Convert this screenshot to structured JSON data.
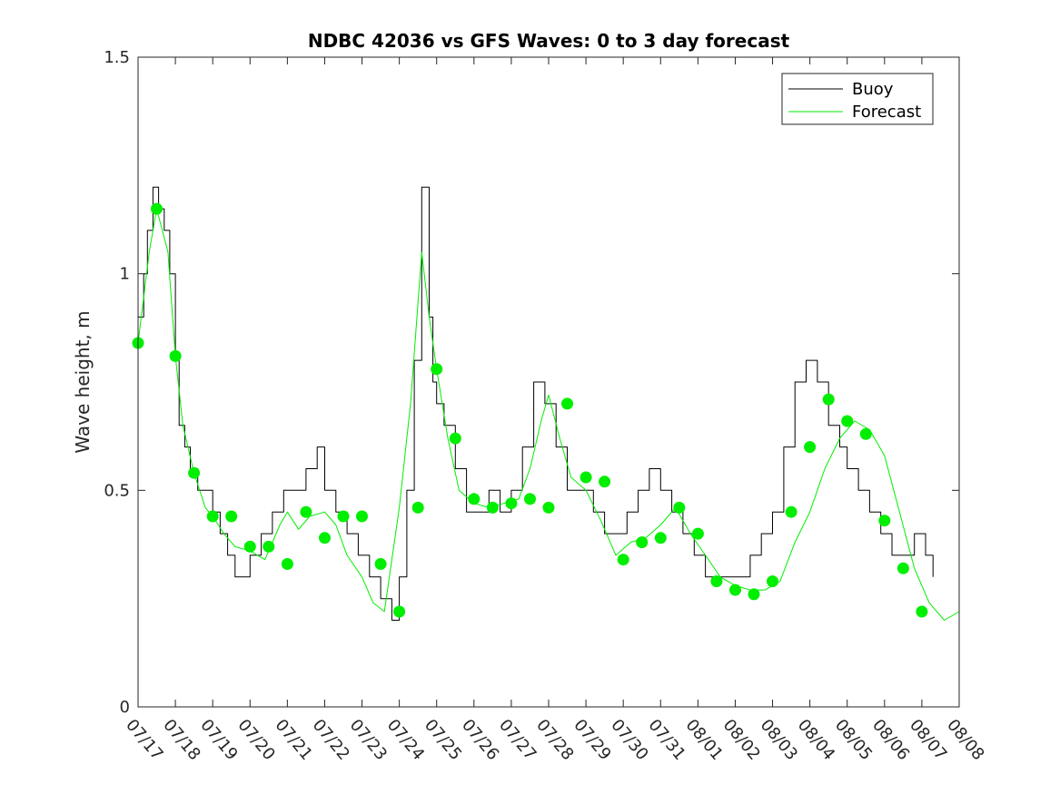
{
  "chart_data": {
    "type": "line",
    "title": "NDBC 42036 vs GFS Waves: 0 to 3 day forecast",
    "xlabel": "",
    "ylabel": "Wave height, m",
    "ylim": [
      0,
      1.5
    ],
    "yticks": [
      "0",
      "0.5",
      "1",
      "1.5"
    ],
    "xlim": [
      0,
      22
    ],
    "xticks": [
      "07/17",
      "07/18",
      "07/19",
      "07/20",
      "07/21",
      "07/22",
      "07/23",
      "07/24",
      "07/25",
      "07/26",
      "07/27",
      "07/28",
      "07/29",
      "07/30",
      "07/31",
      "08/01",
      "08/02",
      "08/03",
      "08/04",
      "08/05",
      "08/06",
      "08/07",
      "08/08"
    ],
    "legend_position": "top-right",
    "grid": false,
    "colors": {
      "buoy": "#000000",
      "forecast": "#00ee00",
      "axis": "#262626"
    },
    "series": [
      {
        "name": "Buoy",
        "x": [
          0,
          0.15,
          0.25,
          0.4,
          0.55,
          0.7,
          0.85,
          1.0,
          1.1,
          1.25,
          1.4,
          1.6,
          1.8,
          2.0,
          2.2,
          2.4,
          2.6,
          2.8,
          3.0,
          3.3,
          3.6,
          3.9,
          4.2,
          4.5,
          4.8,
          5.0,
          5.3,
          5.6,
          5.9,
          6.2,
          6.5,
          6.8,
          7.0,
          7.2,
          7.4,
          7.6,
          7.8,
          7.9,
          8.0,
          8.2,
          8.5,
          8.8,
          9.1,
          9.4,
          9.7,
          10.0,
          10.3,
          10.6,
          10.9,
          11.2,
          11.5,
          11.8,
          12.0,
          12.2,
          12.5,
          12.8,
          13.1,
          13.4,
          13.7,
          14.0,
          14.3,
          14.6,
          14.9,
          15.2,
          15.5,
          15.8,
          16.1,
          16.4,
          16.7,
          17.0,
          17.3,
          17.6,
          17.9,
          18.2,
          18.5,
          18.8,
          19.0,
          19.3,
          19.6,
          19.9,
          20.2,
          20.5,
          20.8,
          21.1,
          21.3
        ],
        "values": [
          0.9,
          1.0,
          1.1,
          1.2,
          1.15,
          1.1,
          1.0,
          0.8,
          0.65,
          0.6,
          0.55,
          0.5,
          0.5,
          0.45,
          0.4,
          0.35,
          0.3,
          0.3,
          0.35,
          0.4,
          0.45,
          0.5,
          0.5,
          0.55,
          0.6,
          0.5,
          0.45,
          0.4,
          0.35,
          0.3,
          0.25,
          0.2,
          0.3,
          0.5,
          0.8,
          1.2,
          0.9,
          0.75,
          0.7,
          0.65,
          0.55,
          0.45,
          0.45,
          0.5,
          0.45,
          0.5,
          0.6,
          0.75,
          0.7,
          0.6,
          0.5,
          0.5,
          0.5,
          0.45,
          0.4,
          0.4,
          0.45,
          0.5,
          0.55,
          0.5,
          0.45,
          0.4,
          0.35,
          0.3,
          0.3,
          0.3,
          0.3,
          0.35,
          0.4,
          0.45,
          0.6,
          0.75,
          0.8,
          0.75,
          0.65,
          0.6,
          0.55,
          0.5,
          0.45,
          0.4,
          0.35,
          0.35,
          0.4,
          0.35,
          0.3
        ]
      },
      {
        "name": "Forecast",
        "x": [
          0,
          0.3,
          0.5,
          0.8,
          1.0,
          1.2,
          1.5,
          1.8,
          2.0,
          2.3,
          2.6,
          3.0,
          3.4,
          3.8,
          4.0,
          4.3,
          4.6,
          5.0,
          5.3,
          5.6,
          6.0,
          6.3,
          6.6,
          6.9,
          7.0,
          7.3,
          7.6,
          7.8,
          8.0,
          8.3,
          8.6,
          9.0,
          9.4,
          9.8,
          10.2,
          10.5,
          10.8,
          11.0,
          11.3,
          11.6,
          12.0,
          12.4,
          12.8,
          13.2,
          13.6,
          14.0,
          14.4,
          14.8,
          15.2,
          15.6,
          16.0,
          16.4,
          16.8,
          17.2,
          17.6,
          18.0,
          18.4,
          18.8,
          19.2,
          19.6,
          20.0,
          20.4,
          20.8,
          21.2,
          21.6,
          22.0
        ],
        "values": [
          0.84,
          1.05,
          1.15,
          1.05,
          0.81,
          0.65,
          0.54,
          0.46,
          0.44,
          0.4,
          0.37,
          0.36,
          0.34,
          0.42,
          0.45,
          0.41,
          0.44,
          0.45,
          0.42,
          0.35,
          0.3,
          0.24,
          0.22,
          0.4,
          0.46,
          0.7,
          1.05,
          0.9,
          0.78,
          0.62,
          0.5,
          0.47,
          0.46,
          0.47,
          0.48,
          0.55,
          0.66,
          0.72,
          0.62,
          0.53,
          0.5,
          0.43,
          0.35,
          0.38,
          0.39,
          0.42,
          0.46,
          0.4,
          0.35,
          0.3,
          0.28,
          0.27,
          0.27,
          0.29,
          0.38,
          0.45,
          0.55,
          0.62,
          0.66,
          0.64,
          0.58,
          0.45,
          0.32,
          0.24,
          0.2,
          0.22
        ]
      }
    ],
    "forecast_markers": {
      "x": [
        0,
        0.5,
        1.0,
        1.5,
        2.0,
        2.5,
        3.0,
        3.5,
        4.0,
        4.5,
        5.0,
        5.5,
        6.0,
        6.5,
        7.0,
        7.5,
        8.0,
        8.5,
        9.0,
        9.5,
        10.0,
        10.5,
        11.0,
        11.5,
        12.0,
        12.5,
        13.0,
        13.5,
        14.0,
        14.5,
        15.0,
        15.5,
        16.0,
        16.5,
        17.0,
        17.5,
        18.0,
        18.5,
        19.0,
        19.5,
        20.0,
        20.5,
        21.0
      ],
      "values": [
        0.84,
        1.15,
        0.81,
        0.54,
        0.44,
        0.44,
        0.37,
        0.37,
        0.33,
        0.45,
        0.39,
        0.44,
        0.44,
        0.33,
        0.22,
        0.46,
        0.78,
        0.62,
        0.48,
        0.46,
        0.47,
        0.48,
        0.46,
        0.7,
        0.53,
        0.52,
        0.34,
        0.38,
        0.39,
        0.46,
        0.4,
        0.29,
        0.27,
        0.26,
        0.29,
        0.45,
        0.6,
        0.71,
        0.66,
        0.63,
        0.43,
        0.32,
        0.22
      ]
    }
  }
}
